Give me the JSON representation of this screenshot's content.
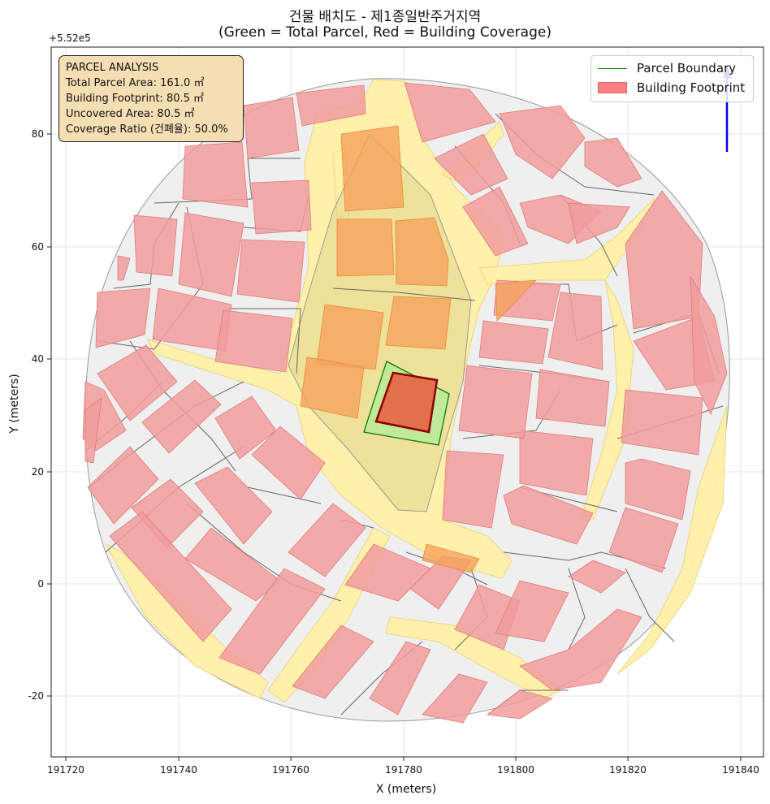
{
  "title": {
    "line1": "건물 배치도 - 제1종일반주거지역",
    "line2": "(Green = Total Parcel, Red = Building Coverage)"
  },
  "axis_offset_label": "+5.52e5",
  "axes": {
    "xlabel": "X (meters)",
    "ylabel": "Y (meters)",
    "x_ticks": [
      "191720",
      "191740",
      "191760",
      "191780",
      "191800",
      "191820",
      "191840"
    ],
    "y_ticks": [
      "80",
      "60",
      "40",
      "20",
      "0",
      "-20"
    ]
  },
  "info_box": {
    "heading": "PARCEL ANALYSIS",
    "total_area": "Total Parcel Area: 161.0 ㎡",
    "footprint": "Building Footprint: 80.5 ㎡",
    "uncovered": "Uncovered Area: 80.5 ㎡",
    "coverage": "Coverage Ratio (건폐율): 50.0%"
  },
  "legend": {
    "parcel_label": "Parcel Boundary",
    "building_label": "Building Footprint"
  },
  "colors": {
    "parcel_edge": "#0a7a0a",
    "parcel_fill": "#b8ea9a",
    "building_fill": "#e2704a",
    "building_edge": "#8b0000",
    "context_building": "#f19c9c",
    "road": "#fff0a8",
    "parcel_gray": "#efefef",
    "north_arrow": "#0000ff"
  },
  "chart_data": {
    "type": "map",
    "x_range": [
      191718,
      191844
    ],
    "y_range": [
      -31,
      95
    ],
    "target_parcel": {
      "area_m2": 161.0,
      "footprint_m2": 80.5,
      "uncovered_m2": 80.5,
      "coverage_ratio_pct": 50.0,
      "parcel_corners": [
        [
          191776,
          39.5
        ],
        [
          191787.5,
          37.5
        ],
        [
          191786,
          24.5
        ],
        [
          191774,
          27
        ]
      ],
      "building_corners": [
        [
          191778,
          37.5
        ],
        [
          191785.5,
          36
        ],
        [
          191785,
          27.5
        ],
        [
          191776.5,
          28.5
        ]
      ]
    },
    "grid": true,
    "legend_position": "top-right"
  }
}
